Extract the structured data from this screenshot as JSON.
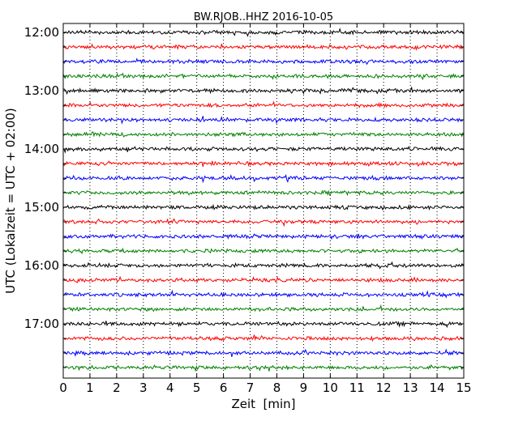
{
  "chart_data": {
    "type": "line",
    "title": "BW.RJOB..HHZ 2016-10-05",
    "xlabel": "Zeit  [min]",
    "ylabel": "UTC (Lokalzeit = UTC + 02:00)",
    "xlim": [
      0,
      15
    ],
    "x_ticks": [
      "0",
      "1",
      "2",
      "3",
      "4",
      "5",
      "6",
      "7",
      "8",
      "9",
      "10",
      "11",
      "12",
      "13",
      "14",
      "15"
    ],
    "y_ticks": [
      "12:00",
      "13:00",
      "14:00",
      "15:00",
      "16:00",
      "17:00"
    ],
    "grid": "vertical dotted",
    "trace_colors": [
      "#000000",
      "#ff0000",
      "#0000ff",
      "#008000"
    ],
    "series": [
      {
        "start": "12:00"
      },
      {
        "start": "12:15"
      },
      {
        "start": "12:30"
      },
      {
        "start": "12:45"
      },
      {
        "start": "13:00"
      },
      {
        "start": "13:15"
      },
      {
        "start": "13:30"
      },
      {
        "start": "13:45"
      },
      {
        "start": "14:00"
      },
      {
        "start": "14:15"
      },
      {
        "start": "14:30"
      },
      {
        "start": "14:45"
      },
      {
        "start": "15:00"
      },
      {
        "start": "15:15"
      },
      {
        "start": "15:30"
      },
      {
        "start": "15:45"
      },
      {
        "start": "16:00"
      },
      {
        "start": "16:15"
      },
      {
        "start": "16:30"
      },
      {
        "start": "16:45"
      },
      {
        "start": "17:00"
      },
      {
        "start": "17:15"
      },
      {
        "start": "17:30"
      },
      {
        "start": "17:45"
      }
    ]
  }
}
